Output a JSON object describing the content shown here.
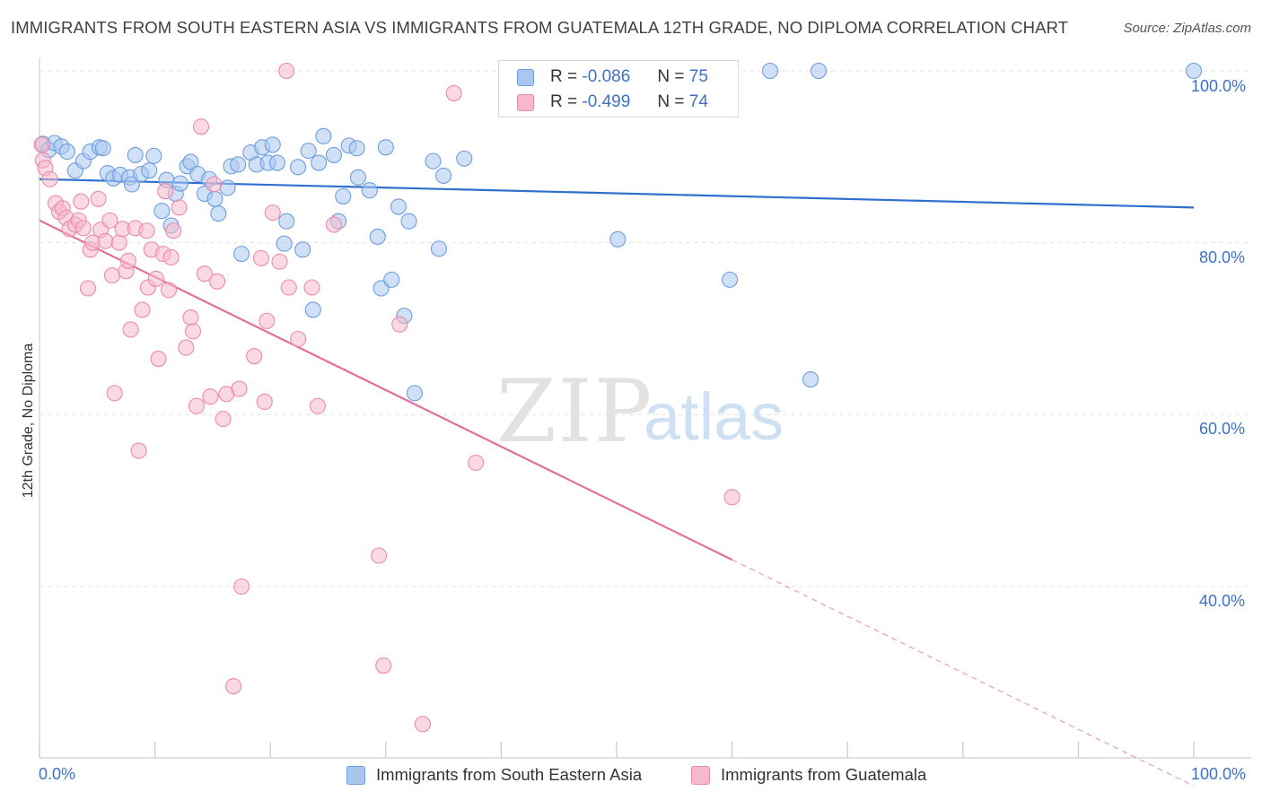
{
  "title": "IMMIGRANTS FROM SOUTH EASTERN ASIA VS IMMIGRANTS FROM GUATEMALA 12TH GRADE, NO DIPLOMA CORRELATION CHART",
  "source": "Source: ZipAtlas.com",
  "watermark": {
    "zip": "ZIP",
    "atlas": "atlas"
  },
  "legend": {
    "r_label": "R =",
    "n_label": "N =",
    "rows": [
      {
        "r": "-0.086",
        "n": "75"
      },
      {
        "r": "-0.499",
        "n": "74"
      }
    ]
  },
  "chart_data": {
    "type": "scatter",
    "ylabel": "12th Grade, No Diploma",
    "xlim": [
      0,
      100
    ],
    "ylim": [
      20,
      102
    ],
    "x_tick_labels": [
      "0.0%",
      "100.0%"
    ],
    "y_ticks": [
      {
        "value": 100,
        "label": "100.0%"
      },
      {
        "value": 80,
        "label": "80.0%"
      },
      {
        "value": 60,
        "label": "60.0%"
      },
      {
        "value": 40,
        "label": "40.0%"
      }
    ],
    "grid": true,
    "legend_position": "top-center",
    "colors": {
      "blue_fill": "#a9c7ee",
      "blue_stroke": "#6d9ee0",
      "blue_line": "#2e6fce",
      "pink_fill": "#f6b9cb",
      "pink_stroke": "#ec8aab",
      "pink_line": "#e1709a",
      "accent_text": "#3b72c8"
    },
    "series": [
      {
        "name": "Immigrants from South Eastern Asia",
        "color": "#a9c7ee",
        "trend": {
          "x": [
            0,
            100
          ],
          "y": [
            87.4,
            84.1
          ],
          "solid_until": 100
        },
        "points": [
          [
            0.3,
            91.5
          ],
          [
            0.8,
            90.8
          ],
          [
            1.3,
            91.6
          ],
          [
            1.9,
            91.2
          ],
          [
            2.4,
            90.6
          ],
          [
            3.1,
            88.4
          ],
          [
            3.8,
            89.5
          ],
          [
            4.4,
            90.6
          ],
          [
            5.2,
            91.1
          ],
          [
            5.5,
            91.0
          ],
          [
            5.9,
            88.1
          ],
          [
            6.4,
            87.5
          ],
          [
            7.0,
            87.9
          ],
          [
            7.8,
            87.6
          ],
          [
            8.0,
            86.8
          ],
          [
            8.3,
            90.2
          ],
          [
            8.8,
            88.0
          ],
          [
            9.5,
            88.4
          ],
          [
            9.9,
            90.1
          ],
          [
            10.6,
            83.7
          ],
          [
            11.0,
            87.3
          ],
          [
            11.4,
            82.0
          ],
          [
            11.8,
            85.7
          ],
          [
            12.2,
            86.9
          ],
          [
            12.8,
            88.9
          ],
          [
            13.1,
            89.4
          ],
          [
            13.7,
            88.0
          ],
          [
            14.3,
            85.7
          ],
          [
            14.7,
            87.4
          ],
          [
            15.2,
            85.1
          ],
          [
            15.5,
            83.4
          ],
          [
            16.3,
            86.4
          ],
          [
            16.6,
            88.9
          ],
          [
            17.2,
            89.1
          ],
          [
            17.5,
            78.7
          ],
          [
            18.3,
            90.5
          ],
          [
            18.8,
            89.1
          ],
          [
            19.3,
            91.1
          ],
          [
            19.8,
            89.3
          ],
          [
            20.2,
            91.4
          ],
          [
            20.6,
            89.3
          ],
          [
            21.2,
            79.9
          ],
          [
            21.4,
            82.5
          ],
          [
            22.4,
            88.8
          ],
          [
            22.8,
            79.2
          ],
          [
            23.3,
            90.7
          ],
          [
            23.7,
            72.2
          ],
          [
            24.2,
            89.3
          ],
          [
            24.6,
            92.4
          ],
          [
            25.5,
            90.2
          ],
          [
            25.9,
            82.5
          ],
          [
            26.3,
            85.4
          ],
          [
            26.8,
            91.3
          ],
          [
            27.5,
            91.0
          ],
          [
            27.6,
            87.6
          ],
          [
            28.6,
            86.1
          ],
          [
            29.3,
            80.7
          ],
          [
            29.6,
            74.7
          ],
          [
            30.0,
            91.1
          ],
          [
            30.5,
            75.7
          ],
          [
            31.1,
            84.2
          ],
          [
            31.6,
            71.5
          ],
          [
            32.0,
            82.5
          ],
          [
            32.5,
            62.5
          ],
          [
            34.1,
            89.5
          ],
          [
            34.6,
            79.3
          ],
          [
            35.0,
            87.8
          ],
          [
            36.8,
            89.8
          ],
          [
            43.0,
            100.0
          ],
          [
            50.1,
            80.4
          ],
          [
            59.8,
            75.7
          ],
          [
            63.3,
            100.0
          ],
          [
            66.8,
            64.1
          ],
          [
            67.5,
            100.0
          ],
          [
            100.0,
            100.0
          ]
        ]
      },
      {
        "name": "Immigrants from Guatemala",
        "color": "#f6b9cb",
        "trend": {
          "x": [
            0,
            100
          ],
          "y": [
            82.6,
            16.8
          ],
          "solid_until": 60
        },
        "points": [
          [
            0.2,
            91.4
          ],
          [
            0.3,
            89.6
          ],
          [
            0.5,
            88.7
          ],
          [
            0.9,
            87.4
          ],
          [
            1.4,
            84.6
          ],
          [
            1.7,
            83.6
          ],
          [
            2.0,
            84.0
          ],
          [
            2.3,
            82.9
          ],
          [
            2.6,
            81.6
          ],
          [
            3.1,
            82.1
          ],
          [
            3.4,
            82.6
          ],
          [
            3.6,
            84.8
          ],
          [
            3.8,
            81.7
          ],
          [
            4.2,
            74.7
          ],
          [
            4.4,
            79.2
          ],
          [
            4.6,
            80.0
          ],
          [
            5.1,
            85.1
          ],
          [
            5.3,
            81.5
          ],
          [
            5.7,
            80.2
          ],
          [
            6.1,
            82.6
          ],
          [
            6.3,
            76.2
          ],
          [
            6.5,
            62.5
          ],
          [
            6.9,
            80.0
          ],
          [
            7.2,
            81.6
          ],
          [
            7.5,
            76.7
          ],
          [
            7.7,
            77.9
          ],
          [
            7.9,
            69.9
          ],
          [
            8.3,
            81.7
          ],
          [
            8.6,
            55.8
          ],
          [
            8.9,
            72.2
          ],
          [
            9.3,
            81.4
          ],
          [
            9.4,
            74.8
          ],
          [
            9.7,
            79.2
          ],
          [
            10.1,
            75.8
          ],
          [
            10.3,
            66.5
          ],
          [
            10.7,
            78.7
          ],
          [
            10.9,
            86.0
          ],
          [
            11.2,
            74.5
          ],
          [
            11.4,
            78.3
          ],
          [
            11.6,
            81.4
          ],
          [
            12.1,
            84.1
          ],
          [
            12.7,
            67.8
          ],
          [
            13.1,
            71.3
          ],
          [
            13.3,
            69.7
          ],
          [
            13.6,
            61.0
          ],
          [
            14.0,
            93.5
          ],
          [
            14.3,
            76.4
          ],
          [
            14.8,
            62.1
          ],
          [
            15.1,
            86.8
          ],
          [
            15.4,
            75.5
          ],
          [
            15.9,
            59.5
          ],
          [
            16.2,
            62.4
          ],
          [
            17.3,
            63.0
          ],
          [
            17.5,
            40.0
          ],
          [
            16.8,
            28.4
          ],
          [
            18.6,
            66.8
          ],
          [
            19.2,
            78.2
          ],
          [
            19.5,
            61.5
          ],
          [
            19.7,
            70.9
          ],
          [
            20.2,
            83.5
          ],
          [
            20.8,
            77.8
          ],
          [
            21.6,
            74.8
          ],
          [
            22.4,
            68.8
          ],
          [
            23.6,
            74.8
          ],
          [
            24.1,
            61.0
          ],
          [
            25.5,
            82.1
          ],
          [
            29.4,
            43.6
          ],
          [
            29.8,
            30.8
          ],
          [
            31.2,
            70.5
          ],
          [
            33.2,
            24.0
          ],
          [
            35.9,
            97.4
          ],
          [
            37.8,
            54.4
          ],
          [
            60.0,
            50.4
          ],
          [
            21.4,
            100.0
          ]
        ]
      }
    ]
  }
}
